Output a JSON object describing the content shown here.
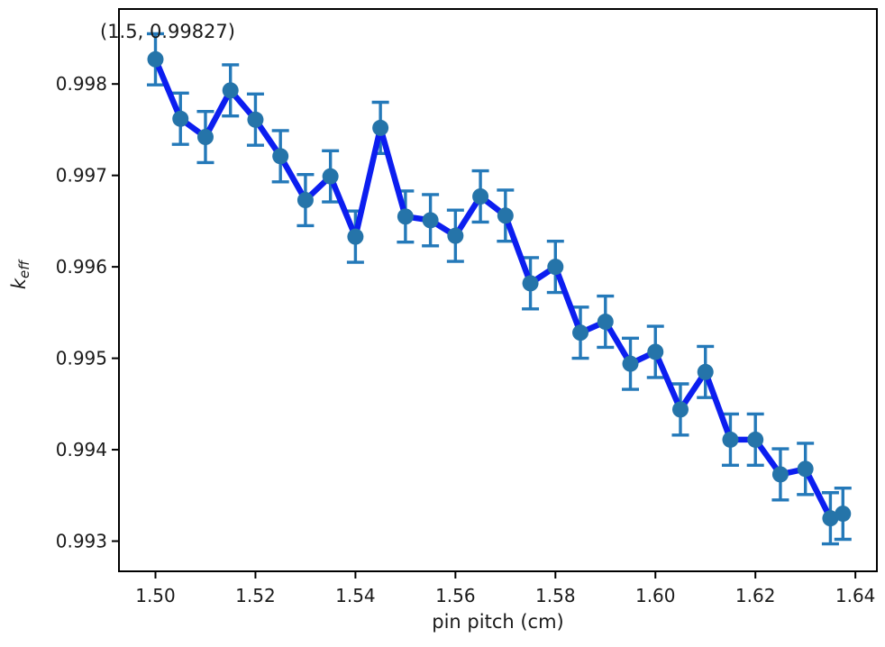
{
  "chart_data": {
    "type": "line",
    "title": "",
    "xlabel": "pin pitch (cm)",
    "ylabel": "k_eff",
    "ylabel_parts": {
      "base": "k",
      "sub": "eff"
    },
    "annotation": {
      "text": "(1.5, 0.99827)",
      "x": 1.5,
      "y": 0.99827
    },
    "x": [
      1.5,
      1.505,
      1.51,
      1.515,
      1.52,
      1.525,
      1.53,
      1.535,
      1.54,
      1.545,
      1.55,
      1.555,
      1.56,
      1.565,
      1.57,
      1.575,
      1.58,
      1.585,
      1.59,
      1.595,
      1.6,
      1.605,
      1.61,
      1.615,
      1.62,
      1.625,
      1.63,
      1.635,
      1.6375
    ],
    "series": [
      {
        "name": "keff",
        "values": [
          0.99827,
          0.99762,
          0.99742,
          0.99793,
          0.99761,
          0.99721,
          0.99673,
          0.99699,
          0.99633,
          0.99752,
          0.99655,
          0.99651,
          0.99634,
          0.99677,
          0.99656,
          0.99582,
          0.996,
          0.99528,
          0.9954,
          0.99494,
          0.99507,
          0.99444,
          0.99485,
          0.99411,
          0.99411,
          0.99373,
          0.99379,
          0.99325,
          0.9933
        ],
        "yerr": 0.00028
      }
    ],
    "xlim": [
      1.4927,
      1.6443
    ],
    "ylim": [
      0.99267,
      0.99882
    ],
    "xticks": [
      1.5,
      1.52,
      1.54,
      1.56,
      1.58,
      1.6,
      1.62,
      1.64
    ],
    "xtick_labels": [
      "1.50",
      "1.52",
      "1.54",
      "1.56",
      "1.58",
      "1.60",
      "1.62",
      "1.64"
    ],
    "yticks": [
      0.993,
      0.994,
      0.995,
      0.996,
      0.997,
      0.998
    ],
    "ytick_labels": [
      "0.993",
      "0.994",
      "0.995",
      "0.996",
      "0.997",
      "0.998"
    ],
    "grid": false,
    "legend": null,
    "colors": {
      "line": "#0c1ef0",
      "marker": "#2574a9",
      "error": "#2479b9",
      "axis": "#000000",
      "tick_text": "#1a1a1a",
      "background": "#ffffff"
    }
  }
}
